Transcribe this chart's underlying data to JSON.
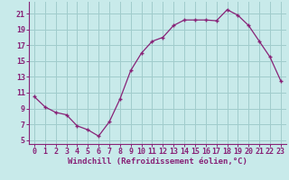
{
  "x": [
    0,
    1,
    2,
    3,
    4,
    5,
    6,
    7,
    8,
    9,
    10,
    11,
    12,
    13,
    14,
    15,
    16,
    17,
    18,
    19,
    20,
    21,
    22,
    23
  ],
  "y": [
    10.5,
    9.2,
    8.5,
    8.2,
    6.8,
    6.3,
    5.5,
    7.3,
    10.2,
    13.8,
    16.0,
    17.5,
    18.0,
    19.5,
    20.2,
    20.2,
    20.2,
    20.1,
    21.5,
    20.8,
    19.5,
    17.5,
    15.5,
    12.5
  ],
  "line_color": "#882277",
  "marker": "+",
  "background_color": "#c8eaea",
  "grid_color": "#a0cccc",
  "xlabel": "Windchill (Refroidissement éolien,°C)",
  "xlim": [
    -0.5,
    23.5
  ],
  "ylim": [
    4.5,
    22.5
  ],
  "yticks": [
    5,
    7,
    9,
    11,
    13,
    15,
    17,
    19,
    21
  ],
  "xticks": [
    0,
    1,
    2,
    3,
    4,
    5,
    6,
    7,
    8,
    9,
    10,
    11,
    12,
    13,
    14,
    15,
    16,
    17,
    18,
    19,
    20,
    21,
    22,
    23
  ],
  "axis_color": "#882277",
  "label_fontsize": 6.5,
  "tick_fontsize": 6.0
}
